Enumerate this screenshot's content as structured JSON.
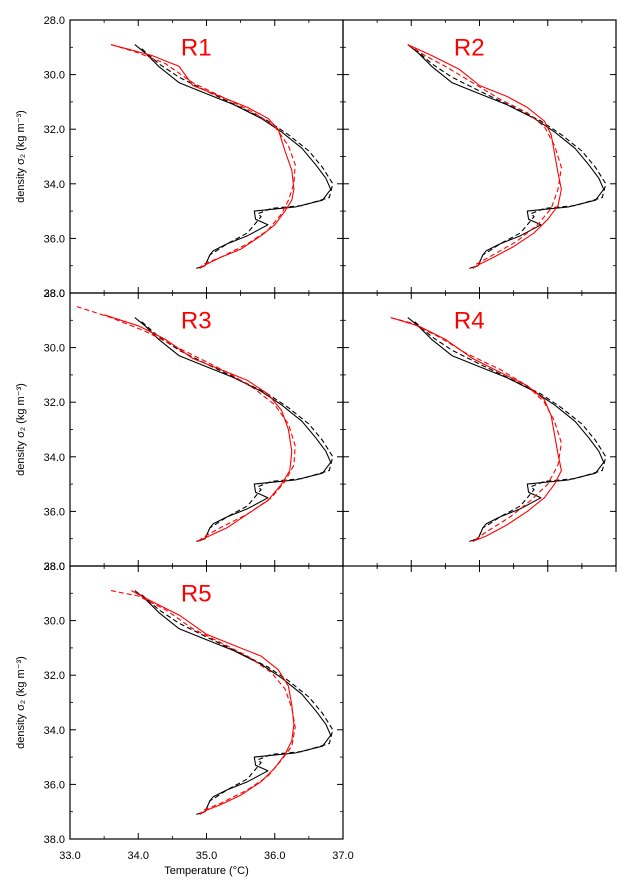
{
  "chart_data": {
    "type": "line",
    "xlabel": "Temperature (°C)",
    "ylabel": "density σ₂ (kg m⁻³)",
    "xlim": [
      33.0,
      37.0
    ],
    "ylim": [
      38.0,
      28.0
    ],
    "y_inverted": true,
    "xticks": [
      33.0,
      34.0,
      35.0,
      36.0,
      37.0
    ],
    "yticks": [
      28.0,
      30.0,
      32.0,
      34.0,
      36.0,
      38.0
    ],
    "xtick_labels": [
      "33.0",
      "34.0",
      "35.0",
      "36.0",
      "37.0"
    ],
    "ytick_labels": [
      "28.0",
      "30.0",
      "32.0",
      "34.0",
      "36.0",
      "38.0"
    ],
    "colors": {
      "black": "#000000",
      "red": "#ff0000"
    },
    "panels": [
      {
        "title": "R1",
        "series": [
          {
            "style": "black-solid",
            "x": [
              33.95,
              34.1,
              34.3,
              34.6,
              35.0,
              35.4,
              35.8,
              36.1,
              36.4,
              36.6,
              36.75,
              36.82,
              36.7,
              36.3,
              35.9,
              35.7,
              35.72,
              35.9,
              35.6,
              35.3,
              35.1,
              35.05,
              34.98,
              34.85
            ],
            "y": [
              28.9,
              29.2,
              29.7,
              30.3,
              30.7,
              31.1,
              31.6,
              32.1,
              32.7,
              33.3,
              33.8,
              34.2,
              34.6,
              34.85,
              34.95,
              35.0,
              35.3,
              35.5,
              35.9,
              36.2,
              36.45,
              36.6,
              37.0,
              37.1
            ]
          },
          {
            "style": "black-dashed",
            "x": [
              34.05,
              34.3,
              34.6,
              35.0,
              35.5,
              35.9,
              36.2,
              36.5,
              36.7,
              36.85,
              36.8,
              36.4,
              35.95,
              35.75,
              35.8,
              35.6,
              35.3,
              35.12,
              35.05,
              34.98,
              34.87
            ],
            "y": [
              29.05,
              29.6,
              30.1,
              30.6,
              31.2,
              31.7,
              32.2,
              32.8,
              33.4,
              34.0,
              34.5,
              34.8,
              34.9,
              35.1,
              35.2,
              35.8,
              36.2,
              36.5,
              36.6,
              37.0,
              37.1
            ]
          },
          {
            "style": "red-solid",
            "x": [
              33.6,
              34.2,
              34.6,
              34.8,
              35.2,
              35.6,
              35.9,
              36.05,
              36.15,
              36.25,
              36.28,
              36.25,
              36.15,
              36.0,
              35.8,
              35.5,
              35.2,
              35.0,
              34.9
            ],
            "y": [
              28.9,
              29.3,
              29.7,
              30.4,
              30.8,
              31.2,
              31.6,
              32.0,
              32.8,
              33.5,
              34.2,
              34.6,
              35.0,
              35.5,
              35.9,
              36.4,
              36.7,
              36.95,
              37.1
            ]
          },
          {
            "style": "red-dashed",
            "x": [
              33.6,
              34.0,
              34.4,
              34.8,
              35.3,
              35.7,
              36.0,
              36.2,
              36.3,
              36.28,
              36.2,
              36.1,
              35.9,
              35.6,
              35.2,
              34.95,
              34.9
            ],
            "y": [
              28.9,
              29.2,
              29.6,
              30.3,
              30.9,
              31.4,
              31.9,
              32.6,
              33.3,
              34.0,
              34.6,
              35.1,
              35.7,
              36.2,
              36.7,
              36.95,
              37.1
            ]
          }
        ]
      },
      {
        "title": "R2",
        "series": [
          {
            "style": "black-solid",
            "x": [
              33.95,
              34.1,
              34.3,
              34.6,
              35.0,
              35.4,
              35.8,
              36.1,
              36.4,
              36.6,
              36.75,
              36.82,
              36.7,
              36.3,
              35.9,
              35.7,
              35.72,
              35.9,
              35.6,
              35.3,
              35.1,
              35.05,
              34.98,
              34.85
            ],
            "y": [
              28.9,
              29.2,
              29.7,
              30.3,
              30.7,
              31.1,
              31.6,
              32.1,
              32.7,
              33.3,
              33.8,
              34.2,
              34.6,
              34.85,
              34.95,
              35.0,
              35.3,
              35.5,
              35.9,
              36.2,
              36.45,
              36.6,
              37.0,
              37.1
            ]
          },
          {
            "style": "black-dashed",
            "x": [
              34.05,
              34.3,
              34.6,
              35.0,
              35.5,
              35.9,
              36.2,
              36.5,
              36.7,
              36.85,
              36.8,
              36.4,
              35.95,
              35.75,
              35.8,
              35.6,
              35.3,
              35.12,
              35.05,
              34.98,
              34.87
            ],
            "y": [
              29.05,
              29.6,
              30.1,
              30.6,
              31.2,
              31.7,
              32.2,
              32.8,
              33.4,
              34.0,
              34.5,
              34.8,
              34.9,
              35.1,
              35.2,
              35.8,
              36.2,
              36.5,
              36.6,
              37.0,
              37.1
            ]
          },
          {
            "style": "red-solid",
            "x": [
              33.95,
              34.3,
              34.7,
              35.0,
              35.4,
              35.7,
              35.95,
              36.05,
              36.1,
              36.15,
              36.2,
              36.15,
              36.0,
              35.8,
              35.5,
              35.2,
              35.0,
              34.9
            ],
            "y": [
              28.9,
              29.3,
              29.8,
              30.4,
              30.8,
              31.2,
              31.7,
              32.2,
              32.9,
              33.6,
              34.2,
              34.8,
              35.3,
              35.8,
              36.3,
              36.7,
              36.95,
              37.1
            ]
          },
          {
            "style": "red-dashed",
            "x": [
              33.95,
              34.2,
              34.5,
              34.9,
              35.3,
              35.7,
              35.95,
              36.1,
              36.2,
              36.15,
              36.05,
              35.85,
              35.55,
              35.2,
              34.95,
              34.9
            ],
            "y": [
              28.9,
              29.3,
              29.7,
              30.3,
              30.9,
              31.4,
              31.9,
              32.6,
              33.4,
              34.2,
              34.9,
              35.5,
              36.1,
              36.6,
              36.95,
              37.1
            ]
          }
        ]
      },
      {
        "title": "R3",
        "series": [
          {
            "style": "black-solid",
            "x": [
              33.95,
              34.1,
              34.3,
              34.6,
              35.0,
              35.4,
              35.8,
              36.1,
              36.4,
              36.6,
              36.75,
              36.82,
              36.7,
              36.3,
              35.9,
              35.7,
              35.72,
              35.9,
              35.6,
              35.3,
              35.1,
              35.05,
              34.98,
              34.85
            ],
            "y": [
              28.9,
              29.2,
              29.7,
              30.3,
              30.7,
              31.1,
              31.6,
              32.1,
              32.7,
              33.3,
              33.8,
              34.2,
              34.6,
              34.85,
              34.95,
              35.0,
              35.3,
              35.5,
              35.9,
              36.2,
              36.45,
              36.6,
              37.0,
              37.1
            ]
          },
          {
            "style": "black-dashed",
            "x": [
              34.05,
              34.3,
              34.6,
              35.0,
              35.5,
              35.9,
              36.2,
              36.5,
              36.7,
              36.85,
              36.8,
              36.4,
              35.95,
              35.75,
              35.8,
              35.6,
              35.3,
              35.12,
              35.05,
              34.98,
              34.87
            ],
            "y": [
              29.05,
              29.6,
              30.1,
              30.6,
              31.2,
              31.7,
              32.2,
              32.8,
              33.4,
              34.0,
              34.5,
              34.8,
              34.9,
              35.1,
              35.2,
              35.8,
              36.2,
              36.5,
              36.6,
              37.0,
              37.1
            ]
          },
          {
            "style": "red-solid",
            "x": [
              33.5,
              34.0,
              34.4,
              34.8,
              35.2,
              35.6,
              35.9,
              36.1,
              36.2,
              36.25,
              36.22,
              36.1,
              35.9,
              35.6,
              35.3,
              35.0,
              34.88
            ],
            "y": [
              28.8,
              29.2,
              29.7,
              30.4,
              30.8,
              31.2,
              31.7,
              32.3,
              33.0,
              33.8,
              34.5,
              35.0,
              35.6,
              36.1,
              36.6,
              36.95,
              37.1
            ]
          },
          {
            "style": "red-dashed",
            "x": [
              33.1,
              33.6,
              34.1,
              34.5,
              34.9,
              35.3,
              35.7,
              36.0,
              36.2,
              36.3,
              36.28,
              36.15,
              35.95,
              35.6,
              35.2,
              34.95,
              34.88
            ],
            "y": [
              28.5,
              28.9,
              29.4,
              29.9,
              30.4,
              30.9,
              31.5,
              32.1,
              32.8,
              33.6,
              34.3,
              34.9,
              35.5,
              36.1,
              36.6,
              36.95,
              37.1
            ]
          }
        ]
      },
      {
        "title": "R4",
        "series": [
          {
            "style": "black-solid",
            "x": [
              33.95,
              34.1,
              34.3,
              34.6,
              35.0,
              35.4,
              35.8,
              36.1,
              36.4,
              36.6,
              36.75,
              36.82,
              36.7,
              36.3,
              35.9,
              35.7,
              35.72,
              35.9,
              35.6,
              35.3,
              35.1,
              35.05,
              34.98,
              34.85
            ],
            "y": [
              28.9,
              29.2,
              29.7,
              30.3,
              30.7,
              31.1,
              31.6,
              32.1,
              32.7,
              33.3,
              33.8,
              34.2,
              34.6,
              34.85,
              34.95,
              35.0,
              35.3,
              35.5,
              35.9,
              36.2,
              36.45,
              36.6,
              37.0,
              37.1
            ]
          },
          {
            "style": "black-dashed",
            "x": [
              34.05,
              34.3,
              34.6,
              35.0,
              35.5,
              35.9,
              36.2,
              36.5,
              36.7,
              36.85,
              36.8,
              36.4,
              35.95,
              35.75,
              35.8,
              35.6,
              35.3,
              35.12,
              35.05,
              34.98,
              34.87
            ],
            "y": [
              29.05,
              29.6,
              30.1,
              30.6,
              31.2,
              31.7,
              32.2,
              32.8,
              33.4,
              34.0,
              34.5,
              34.8,
              34.9,
              35.1,
              35.2,
              35.8,
              36.2,
              36.5,
              36.6,
              37.0,
              37.1
            ]
          },
          {
            "style": "red-solid",
            "x": [
              33.7,
              34.1,
              34.5,
              34.9,
              35.3,
              35.7,
              35.95,
              36.05,
              36.1,
              36.15,
              36.2,
              36.1,
              35.95,
              35.7,
              35.4,
              35.1,
              34.9
            ],
            "y": [
              28.9,
              29.2,
              29.7,
              30.4,
              30.9,
              31.4,
              31.9,
              32.5,
              33.2,
              33.9,
              34.5,
              35.0,
              35.5,
              36.0,
              36.5,
              36.9,
              37.1
            ]
          },
          {
            "style": "red-dashed",
            "x": [
              33.7,
              34.0,
              34.4,
              34.8,
              35.3,
              35.7,
              35.95,
              36.1,
              36.2,
              36.15,
              36.0,
              35.75,
              35.45,
              35.1,
              34.9
            ],
            "y": [
              28.9,
              29.1,
              29.6,
              30.2,
              30.8,
              31.4,
              32.0,
              32.7,
              33.5,
              34.3,
              35.0,
              35.6,
              36.2,
              36.75,
              37.1
            ]
          }
        ]
      },
      {
        "title": "R5",
        "series": [
          {
            "style": "black-solid",
            "x": [
              33.95,
              34.1,
              34.3,
              34.6,
              35.0,
              35.4,
              35.8,
              36.1,
              36.4,
              36.6,
              36.75,
              36.82,
              36.7,
              36.3,
              35.9,
              35.7,
              35.72,
              35.9,
              35.6,
              35.3,
              35.1,
              35.05,
              34.98,
              34.85
            ],
            "y": [
              28.9,
              29.2,
              29.7,
              30.3,
              30.7,
              31.1,
              31.6,
              32.1,
              32.7,
              33.3,
              33.8,
              34.2,
              34.6,
              34.85,
              34.95,
              35.0,
              35.3,
              35.5,
              35.9,
              36.2,
              36.45,
              36.6,
              37.0,
              37.1
            ]
          },
          {
            "style": "black-dashed",
            "x": [
              34.05,
              34.3,
              34.6,
              35.0,
              35.5,
              35.9,
              36.2,
              36.5,
              36.7,
              36.85,
              36.8,
              36.4,
              35.95,
              35.75,
              35.8,
              35.6,
              35.3,
              35.12,
              35.05,
              34.98,
              34.87
            ],
            "y": [
              29.05,
              29.6,
              30.1,
              30.6,
              31.2,
              31.7,
              32.2,
              32.8,
              33.4,
              34.0,
              34.5,
              34.8,
              34.9,
              35.1,
              35.2,
              35.8,
              36.2,
              36.5,
              36.6,
              37.0,
              37.1
            ]
          },
          {
            "style": "red-solid",
            "x": [
              33.9,
              34.2,
              34.6,
              35.0,
              35.4,
              35.8,
              36.05,
              36.2,
              36.25,
              36.28,
              36.25,
              36.15,
              36.0,
              35.8,
              35.5,
              35.2,
              35.0,
              34.9
            ],
            "y": [
              28.9,
              29.3,
              29.8,
              30.5,
              30.9,
              31.3,
              31.8,
              32.4,
              33.1,
              33.8,
              34.4,
              34.9,
              35.4,
              35.9,
              36.4,
              36.75,
              36.95,
              37.1
            ]
          },
          {
            "style": "red-dashed",
            "x": [
              33.6,
              34.0,
              34.4,
              34.8,
              35.2,
              35.6,
              35.95,
              36.15,
              36.25,
              36.3,
              36.25,
              36.1,
              35.9,
              35.6,
              35.2,
              34.95,
              34.9
            ],
            "y": [
              28.9,
              29.1,
              29.6,
              30.3,
              30.8,
              31.3,
              31.9,
              32.5,
              33.2,
              33.9,
              34.6,
              35.1,
              35.7,
              36.2,
              36.7,
              36.95,
              37.1
            ]
          }
        ]
      }
    ]
  }
}
